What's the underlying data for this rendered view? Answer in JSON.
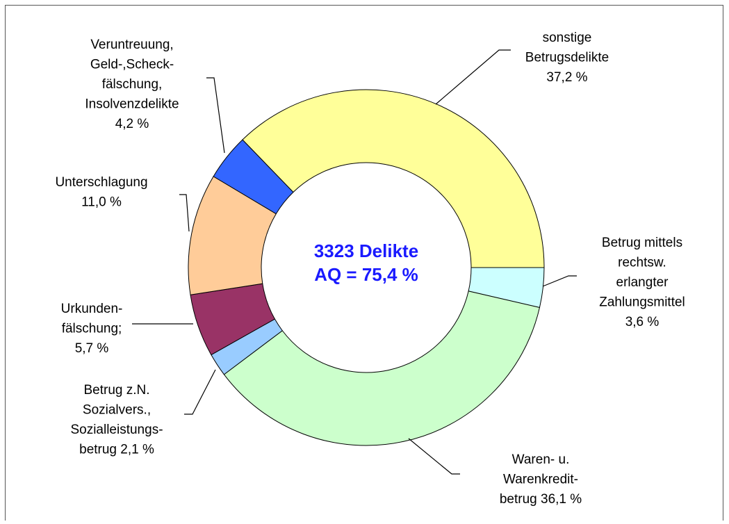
{
  "chart_data": {
    "type": "donut",
    "center_text": [
      "3323 Delikte",
      "AQ = 75,4 %"
    ],
    "categories": [
      "Betrug mittels\nrechtsw.\nerlangter\nZahlungsmittel",
      "Waren- u.\nWarenkredit-\nbetrug",
      "Betrug z.N.\nSozialvers.,\nSozialleistungs-\nbetrug",
      "Urkunden-\nfälschung;",
      "Unterschlagung",
      "Veruntreuung,\nGeld-,Scheck-\nfälschung,\nInsolvenzdelikte",
      "sonstige\nBetrugsdelikte"
    ],
    "values": [
      3.6,
      36.1,
      2.1,
      5.7,
      11.0,
      4.2,
      37.2
    ],
    "value_labels": [
      "3,6  %",
      "36,1  %",
      "2,1  %",
      "5,7  %",
      "11,0  %",
      "4,2  %",
      "37,2  %"
    ],
    "colors": [
      "#ccffff",
      "#ccffcc",
      "#99ccff",
      "#993366",
      "#ffcc99",
      "#3366ff",
      "#ffff99"
    ]
  }
}
